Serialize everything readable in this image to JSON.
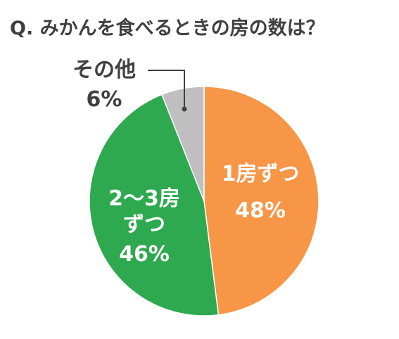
{
  "chart_data": {
    "type": "pie",
    "title": "Q. みかんを食べるときの房の数は？",
    "categories": [
      "1房ずつ",
      "2〜3房ずつ",
      "その他"
    ],
    "values": [
      48,
      46,
      6
    ],
    "value_labels": [
      "48%",
      "46%",
      "6%"
    ],
    "colors": [
      "#F79646",
      "#2EA94F",
      "#BFBFBF"
    ]
  }
}
